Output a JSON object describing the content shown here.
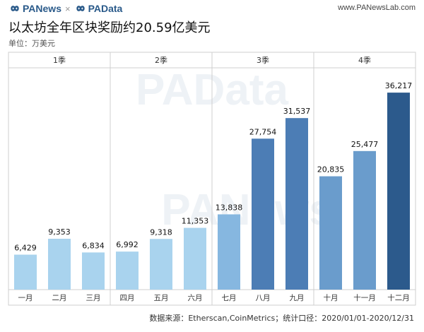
{
  "header": {
    "brand_left": "PANews",
    "brand_sep": "×",
    "brand_right": "PAData",
    "site": "www.PANewsLab.com",
    "logo_icon": "infinity-icon"
  },
  "footer": {
    "source": "数据来源：Etherscan,CoinMetrics；统计口径：2020/01/01-2020/12/31"
  },
  "watermark": [
    "PAData",
    "PANews"
  ],
  "colors": {
    "q12": "#a9d3ee",
    "q3_light": "#86b7e0",
    "q3_dark": "#4c7db5",
    "q4_light": "#6a9ccc",
    "q4_dark": "#2c5a8c"
  },
  "chart_data": {
    "type": "bar",
    "title": "以太坊全年区块奖励约20.59亿美元",
    "subtitle": "单位：万美元",
    "groups": [
      "1季",
      "2季",
      "3季",
      "4季"
    ],
    "categories": [
      "一月",
      "二月",
      "三月",
      "四月",
      "五月",
      "六月",
      "七月",
      "八月",
      "九月",
      "十月",
      "十一月",
      "十二月"
    ],
    "values": [
      6429,
      9353,
      6834,
      6992,
      9318,
      11353,
      13838,
      27754,
      31537,
      20835,
      25477,
      36217
    ],
    "labels": [
      "6,429",
      "9,353",
      "6,834",
      "6,992",
      "9,318",
      "11,353",
      "13,838",
      "27,754",
      "31,537",
      "20,835",
      "25,477",
      "36,217"
    ],
    "ylim": [
      0,
      40000
    ],
    "grid": false
  }
}
